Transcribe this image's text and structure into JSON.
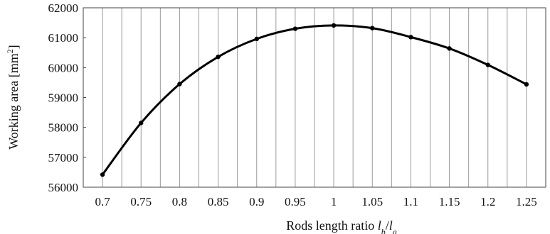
{
  "chart_data": {
    "type": "line",
    "x": [
      0.7,
      0.75,
      0.8,
      0.85,
      0.9,
      0.95,
      1,
      1.05,
      1.1,
      1.15,
      1.2,
      1.25
    ],
    "x_tick_labels": [
      "0.7",
      "0.75",
      "0.8",
      "0.85",
      "0.9",
      "0.95",
      "1",
      "1.05",
      "1.1",
      "1.15",
      "1.2",
      "1.25"
    ],
    "y_ticks": [
      56000,
      57000,
      58000,
      59000,
      60000,
      61000,
      62000
    ],
    "y_tick_labels": [
      "56000",
      "57000",
      "58000",
      "59000",
      "60000",
      "61000",
      "62000"
    ],
    "series": [
      {
        "values": [
          56420,
          58150,
          59450,
          60360,
          60960,
          61300,
          61410,
          61320,
          61020,
          60640,
          60090,
          59440
        ]
      }
    ],
    "ylim": [
      56000,
      62000
    ],
    "xlim": [
      0.675,
      1.275
    ],
    "ylabel": {
      "text": "Working area [mm",
      "sup": "2",
      "suffix": "]"
    },
    "xlabel": {
      "text": "Rods length ratio ",
      "italic1": "l",
      "sub1": "b",
      "slash": "/",
      "italic2": "l",
      "sub2": "a"
    },
    "grid": "vertical",
    "legend": "none",
    "line_color": "#000000"
  }
}
